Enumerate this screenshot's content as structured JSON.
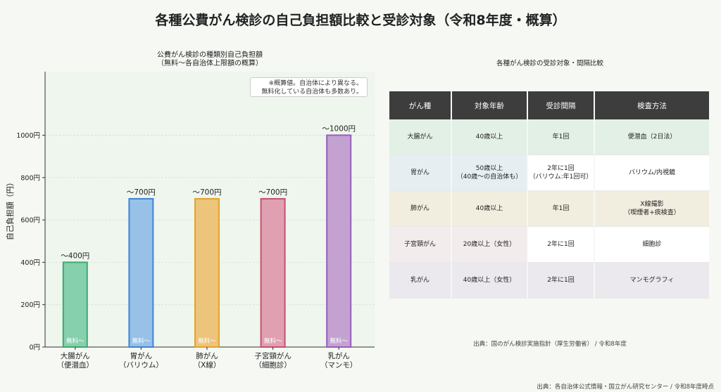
{
  "title": "各種公費がん検診の自己負担額比較と受診対象（令和8年度・概算）",
  "chart_data": {
    "type": "bar",
    "title_lines": [
      "公費がん検診の種類別自己負担額",
      "（無料〜各自治体上限額の概算）"
    ],
    "categories": [
      [
        "大腸がん",
        "（便潜血）"
      ],
      [
        "胃がん",
        "（バリウム）"
      ],
      [
        "肺がん",
        "（X線）"
      ],
      [
        "子宮頸がん",
        "（細胞診）"
      ],
      [
        "乳がん",
        "（マンモ）"
      ]
    ],
    "values": [
      400,
      700,
      700,
      700,
      1000
    ],
    "value_labels": [
      "〜400円",
      "〜700円",
      "〜700円",
      "〜700円",
      "〜1000円"
    ],
    "base_label": "無料〜",
    "colors": [
      "#86d0ad",
      "#97c1e6",
      "#edc47c",
      "#e0a0b1",
      "#c3a2d2"
    ],
    "edge_colors": [
      "#3daa6f",
      "#3f84d6",
      "#e3a32b",
      "#c8506f",
      "#9a5cbf"
    ],
    "ylabel": "自己負担額（円）",
    "ylim": [
      0,
      1300
    ],
    "yticks": [
      0,
      200,
      400,
      600,
      800,
      1000
    ],
    "ytick_labels": [
      "0円",
      "200円",
      "400円",
      "600円",
      "800円",
      "1000円"
    ],
    "note_lines": [
      "※概算値。自治体により異なる。",
      "無料化している自治体も多数あり。"
    ],
    "legend_position": "top-right"
  },
  "table": {
    "title": "各種がん検診の受診対象・間隔比較",
    "headers": [
      "がん種",
      "対象年齢",
      "受診間隔",
      "検査方法"
    ],
    "rows": [
      {
        "cells": [
          "大腸がん",
          "40歳以上",
          "年1回",
          "便潜血（2日法）"
        ],
        "bg": "#e2f0e6"
      },
      {
        "cells": [
          "胃がん",
          "50歳以上\n（40歳〜の自治体も）",
          "2年に1回\n（バリウム:年1回可）",
          "バリウム/内視鏡"
        ],
        "bg": "#e6eef2"
      },
      {
        "cells": [
          "肺がん",
          "40歳以上",
          "年1回",
          "X線撮影\n（喫煙者+痰検査）"
        ],
        "bg": "#f1eedf"
      },
      {
        "cells": [
          "子宮頸がん",
          "20歳以上（女性）",
          "2年に1回",
          "細胞診"
        ],
        "bg": "#f2ecec"
      },
      {
        "cells": [
          "乳がん",
          "40歳以上（女性）",
          "2年に1回",
          "マンモグラフィ"
        ],
        "bg": "#ebe8ee"
      }
    ],
    "source": "出典：国のがん検診実施指針（厚生労働省） / 令和8年度"
  },
  "footer_source": "出典：各自治体公式情報・国立がん研究センター / 令和8年度時点"
}
